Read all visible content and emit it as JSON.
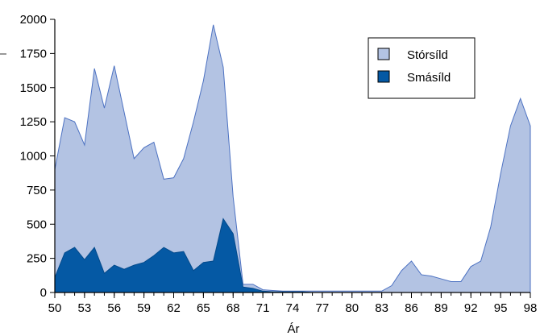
{
  "chart_data": {
    "type": "area",
    "title": "",
    "xlabel": "Ár",
    "ylabel": "",
    "xlim": [
      50,
      98
    ],
    "ylim": [
      0,
      2000
    ],
    "x_ticks": [
      "50",
      "53",
      "56",
      "59",
      "62",
      "65",
      "68",
      "71",
      "74",
      "77",
      "80",
      "83",
      "86",
      "89",
      "92",
      "95",
      "98"
    ],
    "y_ticks": [
      "0",
      "250",
      "500",
      "750",
      "1000",
      "1250",
      "1500",
      "1750",
      "2000"
    ],
    "grid": false,
    "legend_position": "top-right",
    "stacked": false,
    "x": [
      50,
      51,
      52,
      53,
      54,
      55,
      56,
      57,
      58,
      59,
      60,
      61,
      62,
      63,
      64,
      65,
      66,
      67,
      68,
      69,
      70,
      71,
      72,
      73,
      74,
      75,
      76,
      77,
      78,
      79,
      80,
      81,
      82,
      83,
      84,
      85,
      86,
      87,
      88,
      89,
      90,
      91,
      92,
      93,
      94,
      95,
      96,
      97,
      98
    ],
    "series": [
      {
        "name": "Stórsíld",
        "color": "#b3c3e3",
        "edge_color": "#4d72c2",
        "values": [
          900,
          1280,
          1250,
          1080,
          1640,
          1350,
          1660,
          1320,
          980,
          1060,
          1100,
          830,
          840,
          980,
          1250,
          1550,
          1960,
          1650,
          700,
          60,
          60,
          20,
          15,
          10,
          10,
          10,
          10,
          10,
          10,
          10,
          10,
          10,
          10,
          10,
          50,
          160,
          230,
          130,
          120,
          100,
          80,
          80,
          190,
          230,
          480,
          870,
          1220,
          1420,
          1220
        ]
      },
      {
        "name": "Smásíld",
        "color": "#0559a4",
        "edge_color": "#034a8c",
        "values": [
          110,
          290,
          330,
          240,
          330,
          140,
          200,
          170,
          200,
          220,
          270,
          330,
          290,
          300,
          160,
          220,
          230,
          540,
          430,
          40,
          30,
          10,
          5,
          5,
          5,
          5,
          0,
          0,
          0,
          0,
          0,
          0,
          0,
          0,
          0,
          0,
          0,
          0,
          0,
          0,
          0,
          0,
          0,
          0,
          0,
          0,
          0,
          0,
          0
        ]
      }
    ]
  }
}
